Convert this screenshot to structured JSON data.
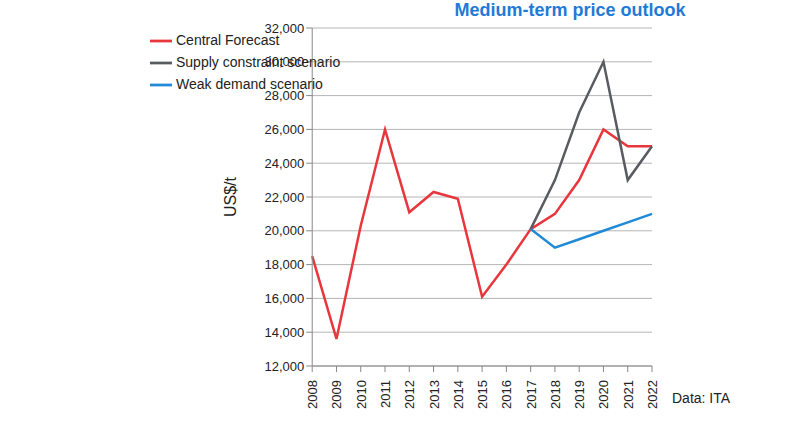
{
  "chart_data": {
    "type": "line",
    "title": "Medium-term price outlook",
    "y_label": "US$/t",
    "annotation": "Data: ITA",
    "categories": [
      "2008",
      "2009",
      "2010",
      "2011",
      "2012",
      "2013",
      "2014",
      "2015",
      "2016",
      "2017",
      "2018",
      "2019",
      "2020",
      "2021",
      "2022"
    ],
    "series": [
      {
        "name": "Central Forecast",
        "color": "#e8363d",
        "values": [
          18500,
          13600,
          20300,
          26000,
          21100,
          22300,
          21900,
          16100,
          18000,
          20100,
          21000,
          23000,
          26000,
          25000,
          25000
        ]
      },
      {
        "name": "Supply constraint scenario",
        "color": "#595b60",
        "values": [
          null,
          null,
          null,
          null,
          null,
          null,
          null,
          null,
          null,
          20100,
          23000,
          27000,
          30000,
          23000,
          25000
        ]
      },
      {
        "name": "Weak demand scenario",
        "color": "#1f8ad6",
        "values": [
          null,
          null,
          null,
          null,
          null,
          null,
          null,
          null,
          null,
          20100,
          19000,
          19500,
          20000,
          20500,
          21000
        ]
      }
    ],
    "ylim": [
      12000,
      32000
    ],
    "yticks": [
      {
        "value": 12000,
        "label": "12,000"
      },
      {
        "value": 14000,
        "label": "14,000"
      },
      {
        "value": 16000,
        "label": "16,000"
      },
      {
        "value": 18000,
        "label": "18,000"
      },
      {
        "value": 20000,
        "label": "20,000"
      },
      {
        "value": 22000,
        "label": "22,000"
      },
      {
        "value": 24000,
        "label": "24,000"
      },
      {
        "value": 26000,
        "label": "26,000"
      },
      {
        "value": 28000,
        "label": "28,000"
      },
      {
        "value": 30000,
        "label": "30,000"
      },
      {
        "value": 32000,
        "label": "32,000"
      }
    ],
    "grid": true,
    "legend": "top-left"
  }
}
